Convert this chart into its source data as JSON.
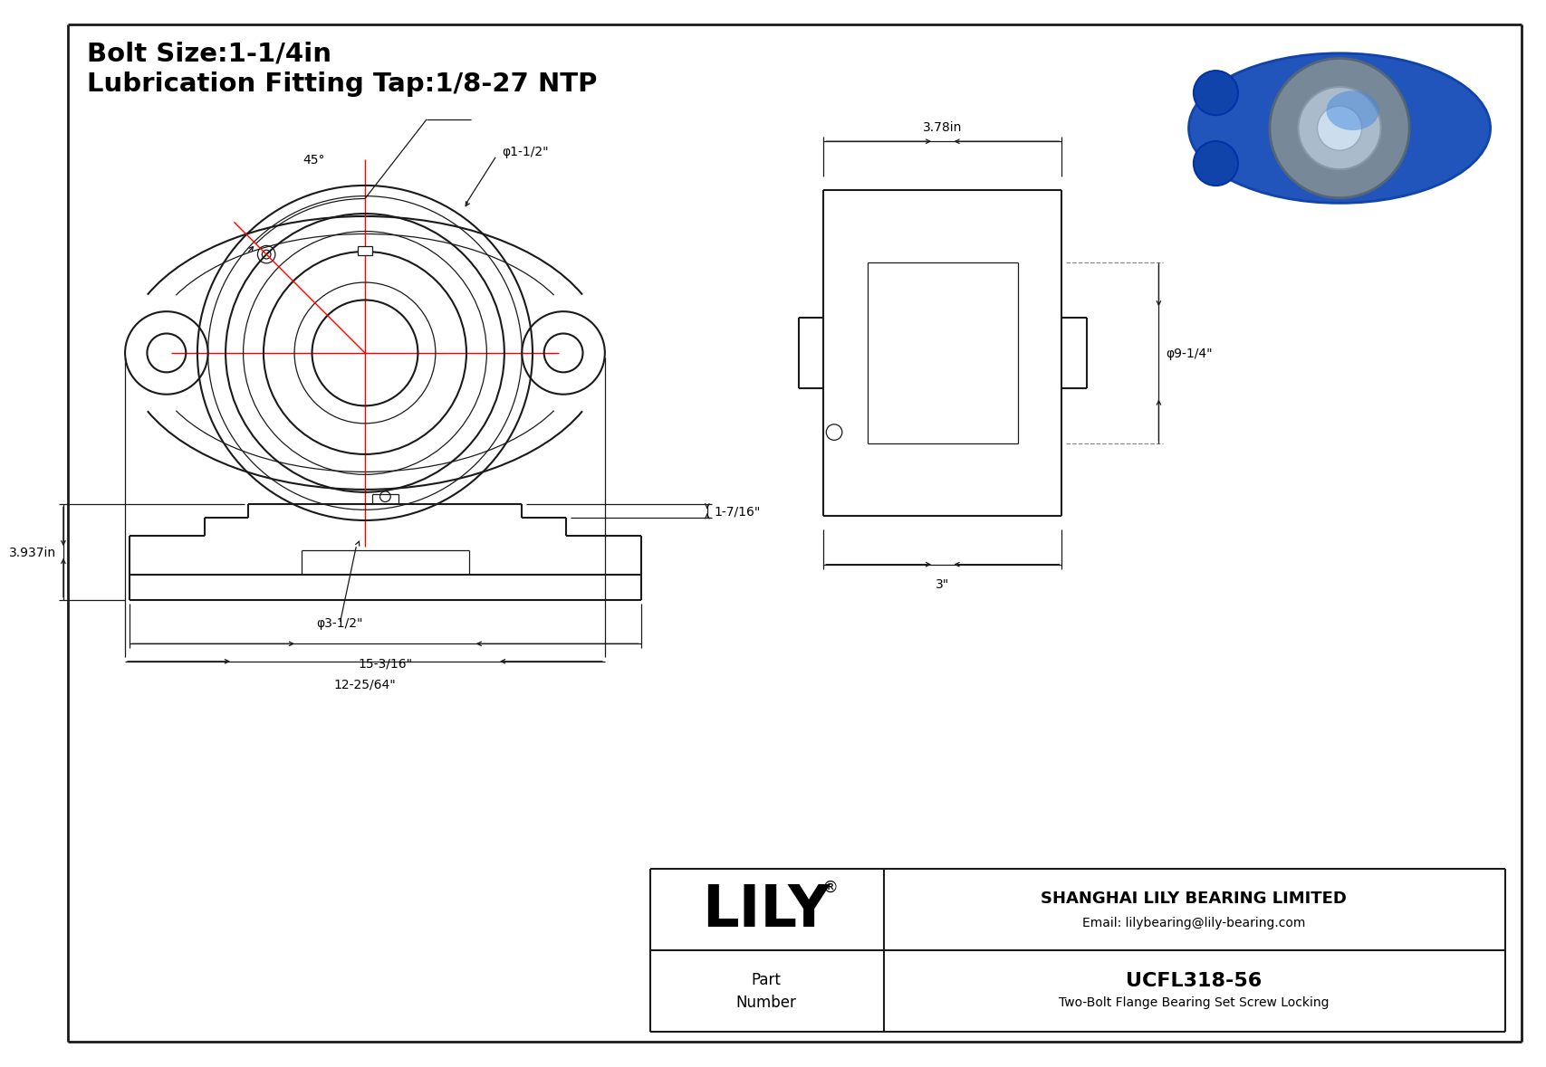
{
  "bg_color": "#ffffff",
  "line_color": "#1a1a1a",
  "red_color": "#ff0000",
  "title_line1": "Bolt Size:1-1/4in",
  "title_line2": "Lubrication Fitting Tap:1/8-27 NTP",
  "company": "SHANGHAI LILY BEARING LIMITED",
  "email": "Email: lilybearing@lily-bearing.com",
  "part_label": "Part\nNumber",
  "part_number": "UCFL318-56",
  "part_desc": "Two-Bolt Flange Bearing Set Screw Locking",
  "dim_3_78": "3.78in",
  "dim_9_14": "φ9-1/4\"",
  "dim_3": "3\"",
  "dim_45": "45°",
  "dim_1_12": "φ1-1/2\"",
  "dim_3_12": "φ3-1/2\"",
  "dim_12_25_64": "12-25/64\"",
  "dim_3_937": "3.937in",
  "dim_1_7_16": "1-7/16\"",
  "dim_15_3_16": "15-3/16\""
}
